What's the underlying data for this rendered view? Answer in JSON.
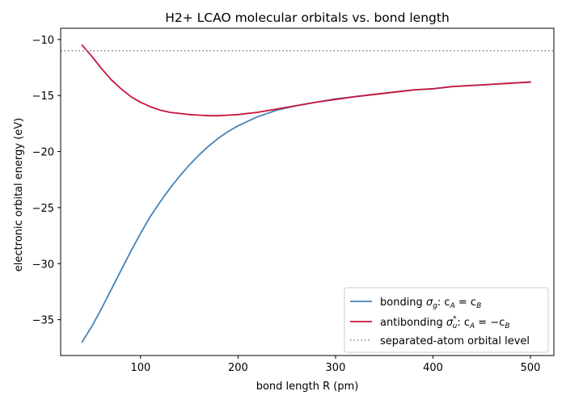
{
  "chart_data": {
    "type": "line",
    "title": "H2+ LCAO molecular orbitals vs. bond length",
    "xlabel": "bond length R (pm)",
    "ylabel": "electronic orbital energy (eV)",
    "xlim": [
      18,
      524
    ],
    "ylim": [
      -38.2,
      -9.0
    ],
    "xticks": [
      100,
      200,
      300,
      400,
      500
    ],
    "xtick_labels": [
      "100",
      "200",
      "300",
      "400",
      "500"
    ],
    "yticks": [
      -35,
      -30,
      -25,
      -20,
      -15,
      -10
    ],
    "ytick_labels": [
      "−35",
      "−30",
      "−25",
      "−20",
      "−15",
      "−10"
    ],
    "grid": false,
    "legend_position": "lower-right",
    "series": [
      {
        "name": "bonding",
        "name_sub": "σ",
        "sub": "g",
        "name_rest": ": c",
        "legend_eq_a": "A",
        "legend_eq_op": " = c",
        "legend_eq_b": "B",
        "color": "#4682b4",
        "style": "solid",
        "x": [
          40,
          50,
          60,
          70,
          80,
          90,
          100,
          110,
          120,
          130,
          140,
          150,
          160,
          170,
          180,
          190,
          200,
          220,
          240,
          260,
          280,
          300,
          320,
          340,
          360,
          380,
          400,
          420,
          440,
          460,
          480,
          500
        ],
        "y": [
          -37.0,
          -35.6,
          -34.0,
          -32.3,
          -30.6,
          -28.9,
          -27.3,
          -25.8,
          -24.5,
          -23.3,
          -22.2,
          -21.2,
          -20.3,
          -19.5,
          -18.8,
          -18.2,
          -17.7,
          -16.9,
          -16.3,
          -15.9,
          -15.6,
          -15.3,
          -15.1,
          -14.9,
          -14.7,
          -14.5,
          -14.4,
          -14.2,
          -14.1,
          -14.0,
          -13.9,
          -13.8
        ]
      },
      {
        "name": "antibonding",
        "name_sub": "σ",
        "sub": "u",
        "sup": "*",
        "name_rest": ": c",
        "legend_eq_a": "A",
        "legend_eq_op": " = −c",
        "legend_eq_b": "B",
        "color": "#c8143c",
        "style": "solid",
        "x": [
          40,
          50,
          60,
          70,
          80,
          90,
          100,
          110,
          120,
          130,
          140,
          150,
          160,
          170,
          180,
          190,
          200,
          220,
          240,
          260,
          280,
          300,
          320,
          340,
          360,
          380,
          400,
          420,
          440,
          460,
          480,
          500
        ],
        "y": [
          -10.5,
          -11.5,
          -12.6,
          -13.6,
          -14.4,
          -15.1,
          -15.6,
          -16.0,
          -16.3,
          -16.5,
          -16.6,
          -16.7,
          -16.75,
          -16.8,
          -16.8,
          -16.75,
          -16.7,
          -16.5,
          -16.2,
          -15.9,
          -15.6,
          -15.35,
          -15.1,
          -14.9,
          -14.7,
          -14.5,
          -14.4,
          -14.2,
          -14.1,
          -14.0,
          -13.9,
          -13.8
        ]
      },
      {
        "name": "separated-atom orbital level",
        "color": "#808080",
        "style": "dotted",
        "y_const": -11.0
      }
    ]
  }
}
